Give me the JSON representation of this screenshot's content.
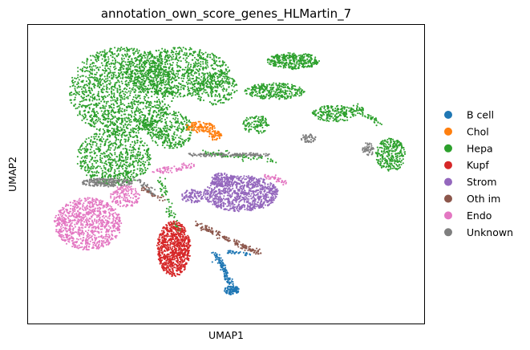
{
  "chart_data": {
    "type": "scatter",
    "title": "annotation_own_score_genes_HLMartin_7",
    "xlabel": "UMAP1",
    "ylabel": "UMAP2",
    "xlim": [
      0,
      100
    ],
    "ylim": [
      0,
      100
    ],
    "ticks_shown": false,
    "grid": false,
    "legend_position": "right-outside",
    "point_size": 1.6,
    "seed": 7,
    "legend": [
      {
        "name": "B cell",
        "color": "#1f77b4"
      },
      {
        "name": "Chol",
        "color": "#ff7f0e"
      },
      {
        "name": "Hepa",
        "color": "#2ca02c"
      },
      {
        "name": "Kupf",
        "color": "#d62728"
      },
      {
        "name": "Strom",
        "color": "#9467bd"
      },
      {
        "name": "Oth im",
        "color": "#8c564b"
      },
      {
        "name": "Endo",
        "color": "#e377c2"
      },
      {
        "name": "Unknown",
        "color": "#7f7f7f"
      }
    ],
    "clusters": [
      {
        "series": "Hepa",
        "shape": "ellipse",
        "cx": 22,
        "cy": 80,
        "rx": 14,
        "ry": 16,
        "n": 1500
      },
      {
        "series": "Hepa",
        "shape": "ellipse",
        "cx": 37,
        "cy": 87,
        "rx": 14,
        "ry": 9,
        "n": 900
      },
      {
        "series": "Hepa",
        "shape": "ellipse",
        "cx": 20,
        "cy": 56,
        "rx": 10,
        "ry": 10,
        "n": 700
      },
      {
        "series": "Hepa",
        "shape": "ellipse",
        "cx": 35,
        "cy": 66,
        "rx": 6,
        "ry": 7,
        "n": 250
      },
      {
        "series": "Hepa",
        "shape": "ellipse",
        "cx": 47,
        "cy": 81,
        "rx": 6,
        "ry": 6,
        "n": 230
      },
      {
        "series": "Hepa",
        "shape": "ellipse",
        "cx": 63,
        "cy": 80,
        "rx": 8,
        "ry": 3,
        "n": 300
      },
      {
        "series": "Hepa",
        "shape": "ellipse",
        "cx": 68,
        "cy": 91,
        "rx": 7,
        "ry": 3,
        "n": 320
      },
      {
        "series": "Hepa",
        "shape": "ellipse",
        "cx": 58,
        "cy": 68,
        "rx": 3.5,
        "ry": 3.5,
        "n": 110
      },
      {
        "series": "Hepa",
        "shape": "ellipse",
        "cx": 79,
        "cy": 72,
        "rx": 6,
        "ry": 3,
        "n": 200
      },
      {
        "series": "Hepa",
        "shape": "ellipse",
        "cx": 94,
        "cy": 57,
        "rx": 4,
        "ry": 6,
        "n": 280
      },
      {
        "series": "Hepa",
        "shape": "line",
        "x1": 84,
        "y1": 75,
        "x2": 91,
        "y2": 68,
        "w": 1.2,
        "n": 60
      },
      {
        "series": "Hepa",
        "shape": "line",
        "x1": 27,
        "y1": 70,
        "x2": 35,
        "y2": 62,
        "w": 2.5,
        "n": 120
      },
      {
        "series": "Hepa",
        "shape": "line",
        "x1": 32,
        "y1": 49,
        "x2": 37,
        "y2": 30,
        "w": 1.2,
        "n": 70
      },
      {
        "series": "Hepa",
        "shape": "line",
        "x1": 44,
        "y1": 58,
        "x2": 63,
        "y2": 55,
        "w": 1.0,
        "n": 80
      },
      {
        "series": "Chol",
        "shape": "ellipse",
        "cx": 43,
        "cy": 67,
        "rx": 4,
        "ry": 2,
        "n": 120
      },
      {
        "series": "Chol",
        "shape": "ellipse",
        "cx": 47,
        "cy": 64,
        "rx": 1.8,
        "ry": 1.8,
        "n": 60
      },
      {
        "series": "Endo",
        "shape": "ellipse",
        "cx": 13,
        "cy": 32,
        "rx": 9,
        "ry": 9.5,
        "n": 900
      },
      {
        "series": "Endo",
        "shape": "ellipse",
        "cx": 23,
        "cy": 42,
        "rx": 4,
        "ry": 4,
        "n": 150
      },
      {
        "series": "Endo",
        "shape": "line",
        "x1": 31,
        "y1": 51,
        "x2": 41,
        "y2": 53,
        "w": 1.2,
        "n": 70
      },
      {
        "series": "Endo",
        "shape": "line",
        "x1": 60,
        "y1": 50,
        "x2": 66,
        "y2": 47,
        "w": 0.8,
        "n": 45
      },
      {
        "series": "Strom",
        "shape": "ellipse",
        "cx": 54,
        "cy": 43,
        "rx": 10,
        "ry": 6.5,
        "n": 900
      },
      {
        "series": "Strom",
        "shape": "ellipse",
        "cx": 49,
        "cy": 48,
        "rx": 3,
        "ry": 2.5,
        "n": 120
      },
      {
        "series": "Strom",
        "shape": "ellipse",
        "cx": 41,
        "cy": 42,
        "rx": 3,
        "ry": 2.5,
        "n": 100
      },
      {
        "series": "Kupf",
        "shape": "ellipse",
        "cx": 36,
        "cy": 23,
        "rx": 4.5,
        "ry": 10,
        "n": 850
      },
      {
        "series": "B cell",
        "shape": "line",
        "x1": 47,
        "y1": 22,
        "x2": 52,
        "y2": 8,
        "w": 0.9,
        "n": 140
      },
      {
        "series": "B cell",
        "shape": "ellipse",
        "cx": 51.5,
        "cy": 8,
        "rx": 2,
        "ry": 1.6,
        "n": 80
      },
      {
        "series": "B cell",
        "shape": "line",
        "x1": 50,
        "y1": 22,
        "x2": 57,
        "y2": 21,
        "w": 0.6,
        "n": 30
      },
      {
        "series": "Oth im",
        "shape": "line",
        "x1": 42,
        "y1": 32,
        "x2": 59,
        "y2": 21,
        "w": 1.0,
        "n": 160
      },
      {
        "series": "Oth im",
        "shape": "line",
        "x1": 28,
        "y1": 45,
        "x2": 34,
        "y2": 40,
        "w": 0.8,
        "n": 30
      },
      {
        "series": "Unknown",
        "shape": "ellipse",
        "cx": 18,
        "cy": 47,
        "rx": 7,
        "ry": 1.6,
        "n": 200
      },
      {
        "series": "Unknown",
        "shape": "line",
        "x1": 40,
        "y1": 57,
        "x2": 62,
        "y2": 57,
        "w": 0.8,
        "n": 130
      },
      {
        "series": "Unknown",
        "shape": "ellipse",
        "cx": 72,
        "cy": 63,
        "rx": 2,
        "ry": 1.6,
        "n": 50
      },
      {
        "series": "Unknown",
        "shape": "ellipse",
        "cx": 88,
        "cy": 59,
        "rx": 1.5,
        "ry": 2.5,
        "n": 50
      },
      {
        "series": "Unknown",
        "shape": "line",
        "x1": 25,
        "y1": 49,
        "x2": 31,
        "y2": 43,
        "w": 1.0,
        "n": 40
      }
    ]
  }
}
